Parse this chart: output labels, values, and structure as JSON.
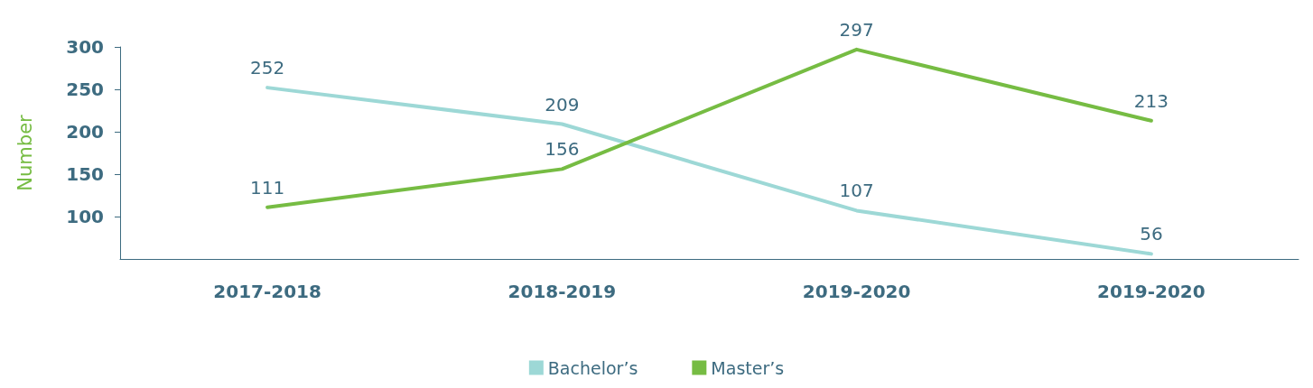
{
  "chart_data": {
    "type": "line",
    "ylabel": "Number",
    "categories": [
      "2017-2018",
      "2018-2019",
      "2019-2020",
      "2019-2020"
    ],
    "series": [
      {
        "name": "Bachelor’s",
        "color": "#9dd8d6",
        "values": [
          252,
          209,
          107,
          56
        ]
      },
      {
        "name": "Master’s",
        "color": "#76bc43",
        "values": [
          111,
          156,
          297,
          213
        ]
      }
    ],
    "ylim": [
      50,
      300
    ],
    "yticks": [
      100,
      150,
      200,
      250,
      300
    ],
    "grid": false,
    "legend": "bottom",
    "marker": "none",
    "line_style": "solid",
    "data_labels": true
  }
}
